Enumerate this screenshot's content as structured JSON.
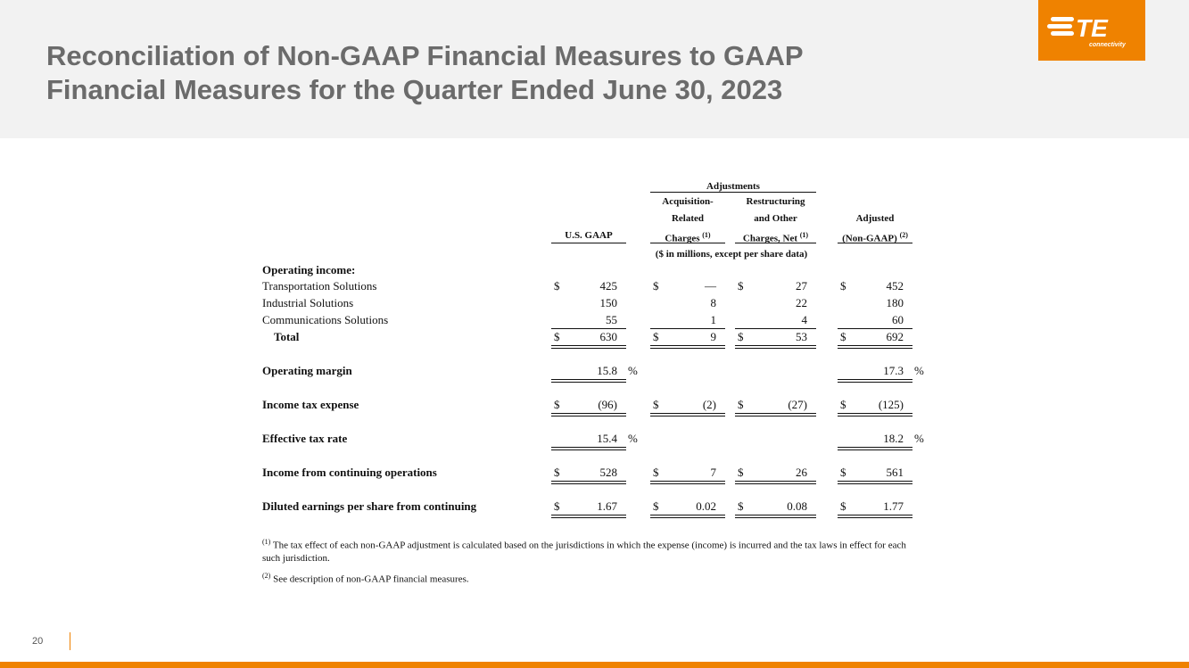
{
  "title_line1": "Reconciliation of Non-GAAP Financial Measures to GAAP",
  "title_line2": "Financial Measures for the Quarter Ended June 30, 2023",
  "logo": {
    "text": "TE",
    "sub": "connectivity",
    "color": "#ef8200"
  },
  "page_number": "20",
  "table": {
    "adjustments_header": "Adjustments",
    "columns": [
      {
        "lines": [
          "U.S. GAAP"
        ]
      },
      {
        "lines": [
          "Acquisition-",
          "Related",
          "Charges"
        ],
        "sup": "(1)"
      },
      {
        "lines": [
          "Restructuring",
          "and Other",
          "Charges, Net"
        ],
        "sup": "(1)"
      },
      {
        "lines": [
          "Adjusted",
          "(Non-GAAP)"
        ],
        "sup": "(2)"
      }
    ],
    "units_note": "($ in millions, except per share data)",
    "section_label": "Operating income:",
    "rows": [
      {
        "label": "Transportation Solutions",
        "bold": false,
        "dollar": true,
        "values": [
          "425",
          "—",
          "27",
          "452"
        ]
      },
      {
        "label": "Industrial Solutions",
        "bold": false,
        "dollar": false,
        "values": [
          "150",
          "8",
          "22",
          "180"
        ]
      },
      {
        "label": "Communications Solutions",
        "bold": false,
        "dollar": false,
        "values": [
          "55",
          "1",
          "4",
          "60"
        ],
        "underline": "single"
      },
      {
        "label": "Total",
        "bold": true,
        "indent": true,
        "dollar": true,
        "values": [
          "630",
          "9",
          "53",
          "692"
        ],
        "underline": "double"
      },
      {
        "label": "Operating margin",
        "bold": true,
        "dollar": false,
        "values": [
          "15.8",
          "",
          "",
          "17.3"
        ],
        "percent": "%",
        "underline": "double"
      },
      {
        "label": "Income tax expense",
        "bold": true,
        "dollar": true,
        "values": [
          "(96)",
          "(2)",
          "(27)",
          "(125)"
        ],
        "underline": "double"
      },
      {
        "label": "Effective tax rate",
        "bold": true,
        "dollar": false,
        "values": [
          "15.4",
          "",
          "",
          "18.2"
        ],
        "percent": "%",
        "underline": "double"
      },
      {
        "label": "Income from continuing operations",
        "bold": true,
        "dollar": true,
        "values": [
          "528",
          "7",
          "26",
          "561"
        ],
        "underline": "double"
      },
      {
        "label": "Diluted earnings per share from continuing",
        "bold": true,
        "dollar": true,
        "values": [
          "1.67",
          "0.02",
          "0.08",
          "1.77"
        ],
        "underline": "double"
      }
    ],
    "dollar_sign": "$"
  },
  "footnotes": [
    {
      "marker": "(1)",
      "text": " The tax effect of each non-GAAP adjustment is calculated based on the jurisdictions in which the expense (income) is incurred and the tax laws in effect for each such jurisdiction."
    },
    {
      "marker": "(2)",
      "text": " See description of non-GAAP financial measures."
    }
  ]
}
